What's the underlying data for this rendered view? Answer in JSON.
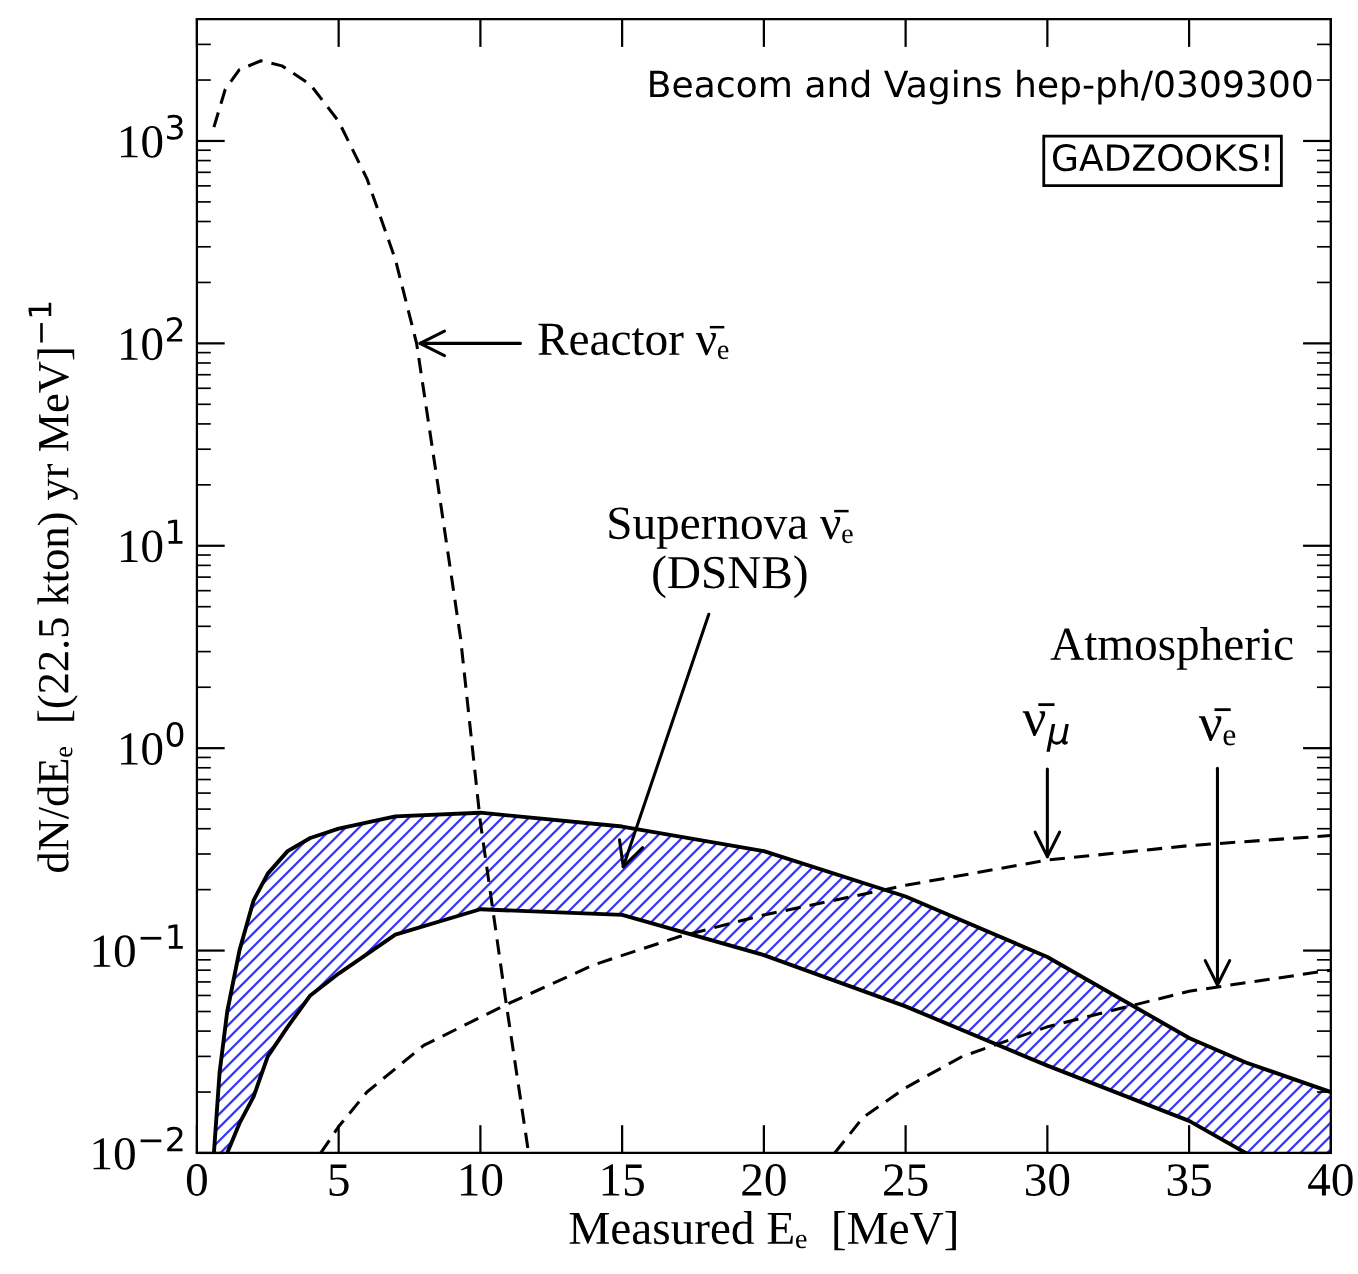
{
  "chart_data": {
    "type": "line",
    "xlabel": "Measured Eₑ  [MeV]",
    "ylabel": "dN/dEₑ  [(22.5 kton) yr MeV]$^{−1}$",
    "log": "y",
    "xlim": [
      0,
      40
    ],
    "ylim": [
      0.01,
      4000
    ],
    "xticks": [
      0,
      5,
      10,
      15,
      20,
      25,
      30,
      35,
      40
    ],
    "yticks": [
      {
        "value": 0.01,
        "label": "10$^{−2}$"
      },
      {
        "value": 0.1,
        "label": "10$^{−1}$"
      },
      {
        "value": 1,
        "label": "10$^{0}$"
      },
      {
        "value": 10,
        "label": "10$^{1}$"
      },
      {
        "value": 100,
        "label": "10$^{2}$"
      },
      {
        "value": 1000,
        "label": "10$^{3}$"
      }
    ],
    "grid": false,
    "line_style": "dashed",
    "marker": "none",
    "series": [
      {
        "color": "#000000",
        "x": [
          0.6,
          1.0,
          1.5,
          2.26,
          3,
          4,
          5,
          6,
          7,
          7.75,
          8.5,
          9.3,
          10.0,
          10.9,
          11.7
        ],
        "values": [
          1170,
          1800,
          2250,
          2490,
          2350,
          1900,
          1250,
          650,
          260,
          100,
          20,
          3.5,
          0.43,
          0.056,
          0.01
        ]
      },
      {
        "color": "#000000",
        "x": [
          4.37,
          5,
          6,
          8,
          10.9,
          14,
          17,
          20,
          25,
          30,
          35,
          40
        ],
        "values": [
          0.01,
          0.0135,
          0.02,
          0.034,
          0.054,
          0.085,
          0.117,
          0.15,
          0.21,
          0.28,
          0.33,
          0.37
        ]
      },
      {
        "color": "#000000",
        "x": [
          22.5,
          23.5,
          25,
          27,
          30,
          35,
          40
        ],
        "values": [
          0.01,
          0.015,
          0.021,
          0.03,
          0.042,
          0.063,
          0.08
        ]
      },
      {
        "type": "line",
        "color": "#000000",
        "line_style": "solid",
        "x": [
          0.6,
          0.8,
          1.07,
          1.5,
          2,
          2.5,
          3.2,
          4,
          5,
          7,
          10,
          15,
          20,
          25,
          30,
          35,
          37,
          40
        ],
        "values": [
          0.01,
          0.025,
          0.05,
          0.1,
          0.177,
          0.24,
          0.31,
          0.36,
          0.4,
          0.46,
          0.48,
          0.41,
          0.31,
          0.185,
          0.093,
          0.037,
          0.028,
          0.02
        ],
        "upper": [
          0.01,
          0.025,
          0.05,
          0.1,
          0.177,
          0.24,
          0.31,
          0.36,
          0.4,
          0.46,
          0.48,
          0.41,
          0.31,
          0.185,
          0.093,
          0.037,
          0.028,
          0.02
        ],
        "lower": [
          0.01,
          0.01,
          0.01,
          0.014,
          0.019,
          0.03,
          0.042,
          0.06,
          0.077,
          0.12,
          0.16,
          0.15,
          0.095,
          0.053,
          0.027,
          0.0144,
          0.01,
          0.01
        ]
      },
      {
        "color": "#000000",
        "line_style": "solid",
        "x": [
          1.07,
          1.5,
          2,
          2.5,
          3.2,
          4,
          5,
          7,
          10,
          15,
          20,
          25,
          30,
          35,
          37
        ],
        "values": [
          0.01,
          0.014,
          0.019,
          0.03,
          0.042,
          0.06,
          0.077,
          0.12,
          0.16,
          0.15,
          0.095,
          0.053,
          0.027,
          0.0144,
          0.01
        ]
      }
    ],
    "annotations": [
      "Beacom and Vagins hep-ph/0309300",
      "GADZOOKS!",
      {
        "text": "Reactor ν̄ₑ",
        "x": 7.75,
        "y": 100
      },
      "Supernova ν̄ₑ\n(DSNB)",
      "Atmospheric",
      {
        "text": "ν̄$_{μ}$",
        "x": 30,
        "y": 0.28
      },
      {
        "text": "ν̄ₑ",
        "x": 36,
        "y": 0.065
      }
    ]
  }
}
